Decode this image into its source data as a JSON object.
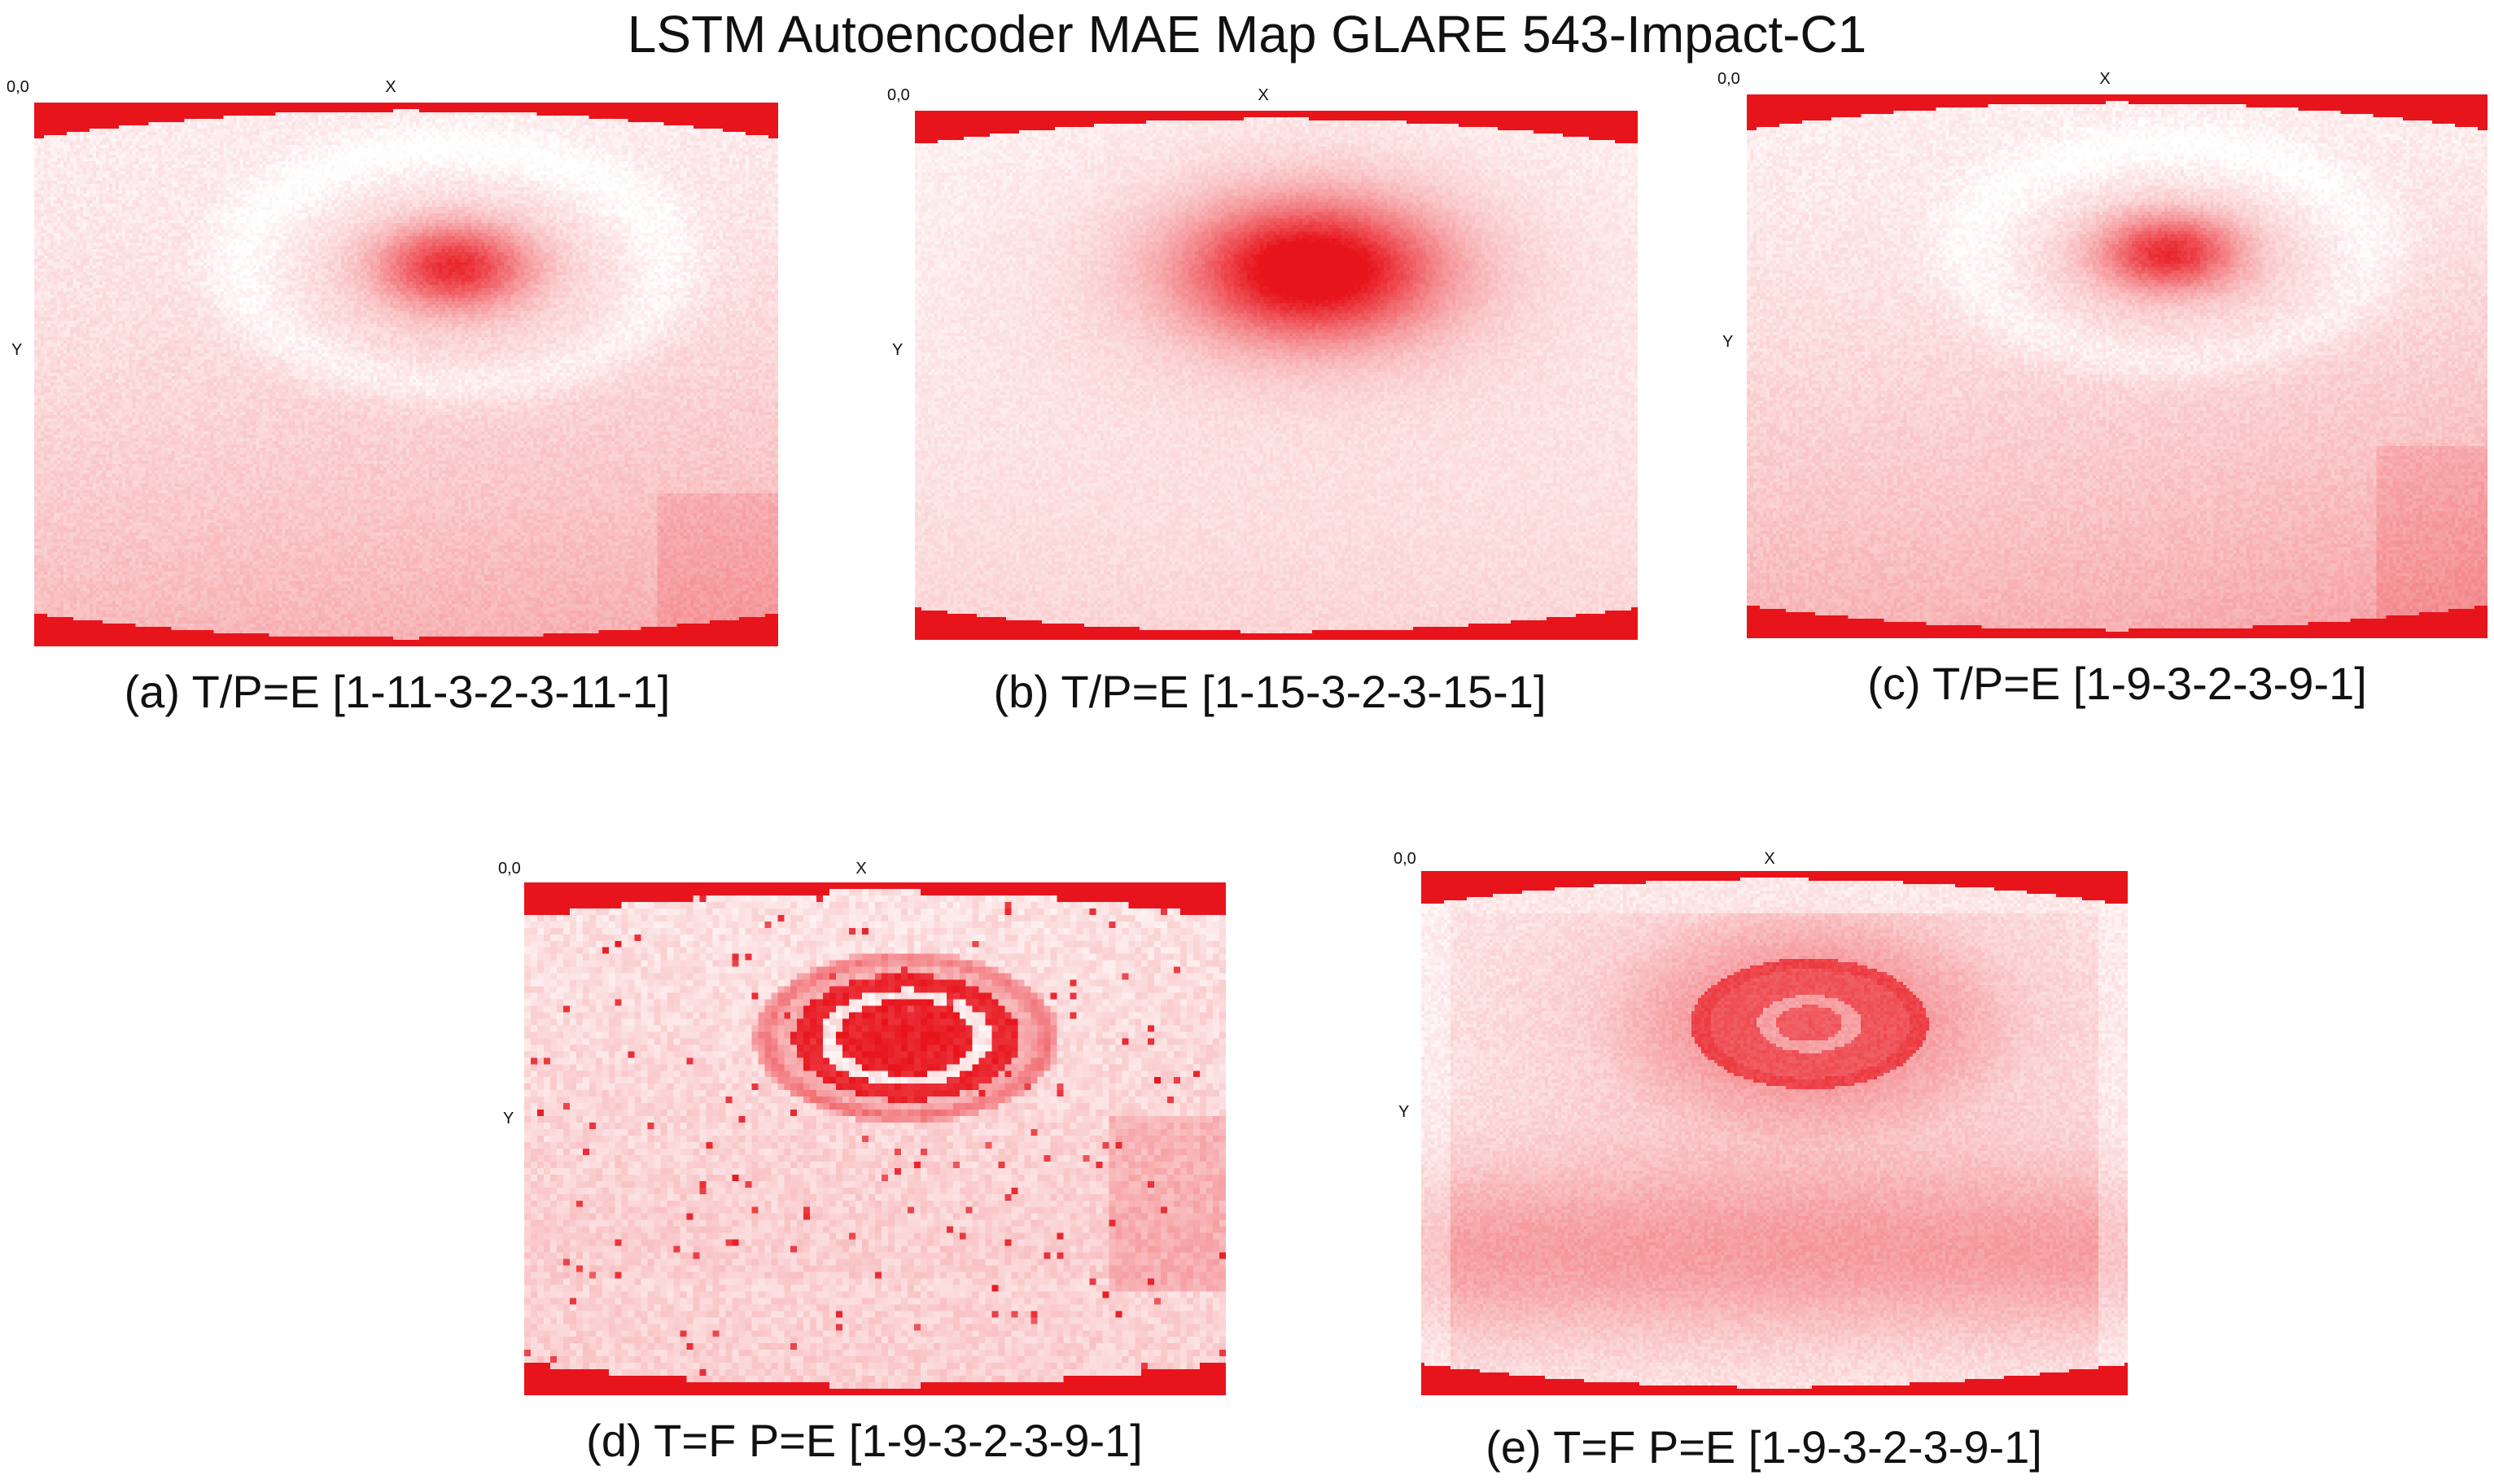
{
  "chart_data": {
    "type": "heatmap",
    "title": "LSTM Autoencoder MAE  Map GLARE 543-Impact-C1",
    "origin_label": "0,0",
    "xlabel": "X",
    "ylabel": "Y",
    "colormap": [
      "#ffffff",
      "#e8141c"
    ],
    "panels": [
      {
        "caption": "(a) T/P=E [1-11-3-2-3-11-1]"
      },
      {
        "caption": "(b) T/P=E [1-15-3-2-3-15-1]"
      },
      {
        "caption": "(c) T/P=E [1-9-3-2-3-9-1]"
      },
      {
        "caption": "(d) T=F P=E [1-9-3-2-3-9-1]"
      },
      {
        "caption": "(e) T=F P=E [1-9-3-2-3-9-1]"
      }
    ]
  }
}
